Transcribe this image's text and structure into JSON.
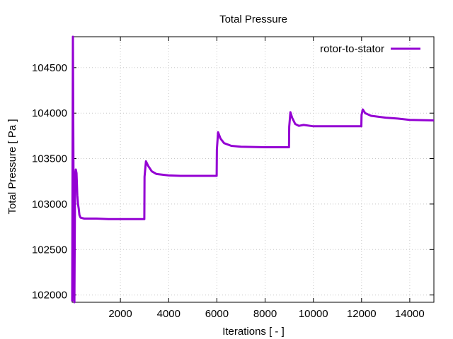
{
  "chart_data": {
    "type": "line",
    "title": "Total Pressure",
    "xlabel": "Iterations [ - ]",
    "ylabel": "Total Pressure [ Pa ]",
    "xlim": [
      0,
      15000
    ],
    "ylim": [
      101920,
      104840
    ],
    "x_ticks": [
      2000,
      4000,
      6000,
      8000,
      10000,
      12000,
      14000
    ],
    "y_ticks": [
      102000,
      102500,
      103000,
      103500,
      104000,
      104500
    ],
    "grid": true,
    "legend_position": "top-right",
    "colors": {
      "series": "#9400d3",
      "grid": "#c8c8c8",
      "axis": "#000000"
    },
    "series": [
      {
        "name": "rotor-to-stator",
        "points": [
          [
            0,
            101930
          ],
          [
            30,
            104840
          ],
          [
            60,
            103000
          ],
          [
            90,
            101920
          ],
          [
            120,
            103300
          ],
          [
            150,
            103380
          ],
          [
            180,
            103340
          ],
          [
            210,
            103100
          ],
          [
            240,
            103000
          ],
          [
            270,
            102950
          ],
          [
            300,
            102880
          ],
          [
            350,
            102850
          ],
          [
            500,
            102840
          ],
          [
            1000,
            102840
          ],
          [
            1500,
            102835
          ],
          [
            2000,
            102835
          ],
          [
            2500,
            102835
          ],
          [
            2990,
            102835
          ],
          [
            3000,
            103300
          ],
          [
            3060,
            103470
          ],
          [
            3150,
            103420
          ],
          [
            3300,
            103360
          ],
          [
            3500,
            103330
          ],
          [
            4000,
            103315
          ],
          [
            4500,
            103310
          ],
          [
            5000,
            103310
          ],
          [
            5990,
            103310
          ],
          [
            6000,
            103600
          ],
          [
            6050,
            103790
          ],
          [
            6150,
            103720
          ],
          [
            6300,
            103670
          ],
          [
            6600,
            103640
          ],
          [
            7000,
            103630
          ],
          [
            8000,
            103625
          ],
          [
            8990,
            103625
          ],
          [
            9000,
            103850
          ],
          [
            9050,
            104010
          ],
          [
            9120,
            103950
          ],
          [
            9250,
            103880
          ],
          [
            9400,
            103860
          ],
          [
            9600,
            103870
          ],
          [
            10000,
            103855
          ],
          [
            11000,
            103855
          ],
          [
            11990,
            103855
          ],
          [
            12000,
            103980
          ],
          [
            12050,
            104040
          ],
          [
            12150,
            104000
          ],
          [
            12400,
            103970
          ],
          [
            13000,
            103950
          ],
          [
            13500,
            103940
          ],
          [
            14000,
            103925
          ],
          [
            15000,
            103920
          ]
        ]
      }
    ]
  }
}
